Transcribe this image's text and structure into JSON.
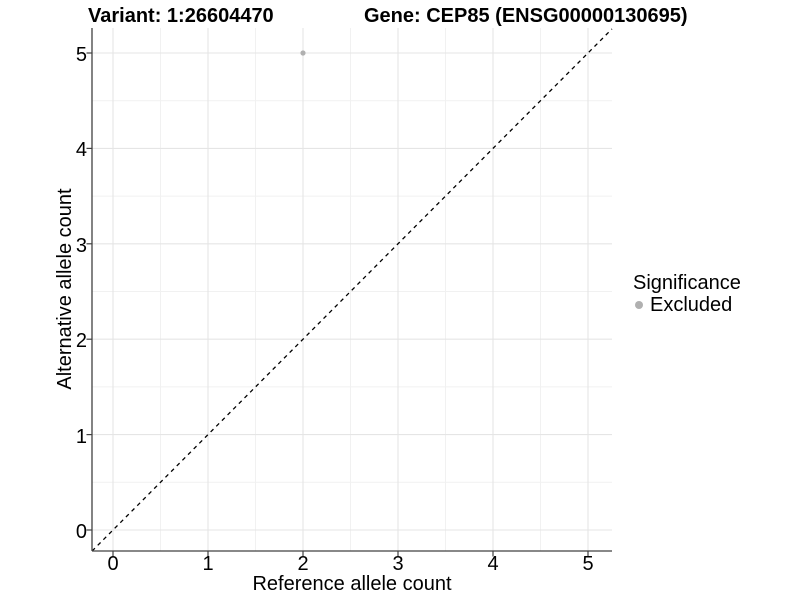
{
  "title_left": "Variant: 1:26604470",
  "title_right": "Gene: CEP85 (ENSG00000130695)",
  "legend": {
    "title": "Significance",
    "items": [
      {
        "label": "Excluded",
        "color": "#b0b0b0"
      }
    ]
  },
  "chart_data": {
    "type": "scatter",
    "title": "Variant: 1:26604470  /  Gene: CEP85 (ENSG00000130695)",
    "xlabel": "Reference allele count",
    "ylabel": "Alternative allele count",
    "xlim": [
      -0.25,
      5.25
    ],
    "ylim": [
      -0.25,
      5.25
    ],
    "xticks": [
      0,
      1,
      2,
      3,
      4,
      5
    ],
    "yticks": [
      0,
      1,
      2,
      3,
      4,
      5
    ],
    "minor_grid_step": 0.5,
    "grid": true,
    "legend_position": "right",
    "series": [
      {
        "name": "Excluded",
        "color": "#b0b0b0",
        "points": [
          {
            "x": 2,
            "y": 5
          }
        ]
      }
    ],
    "reference_line": {
      "type": "identity",
      "slope": 1,
      "intercept": 0,
      "style": "dashed",
      "color": "#000000"
    }
  },
  "colors": {
    "background": "#ffffff",
    "grid_major": "#e5e5e5",
    "grid_minor": "#f1f1f1",
    "axis_line": "#414141",
    "text": "#000000",
    "point": "#b4b4b4"
  }
}
